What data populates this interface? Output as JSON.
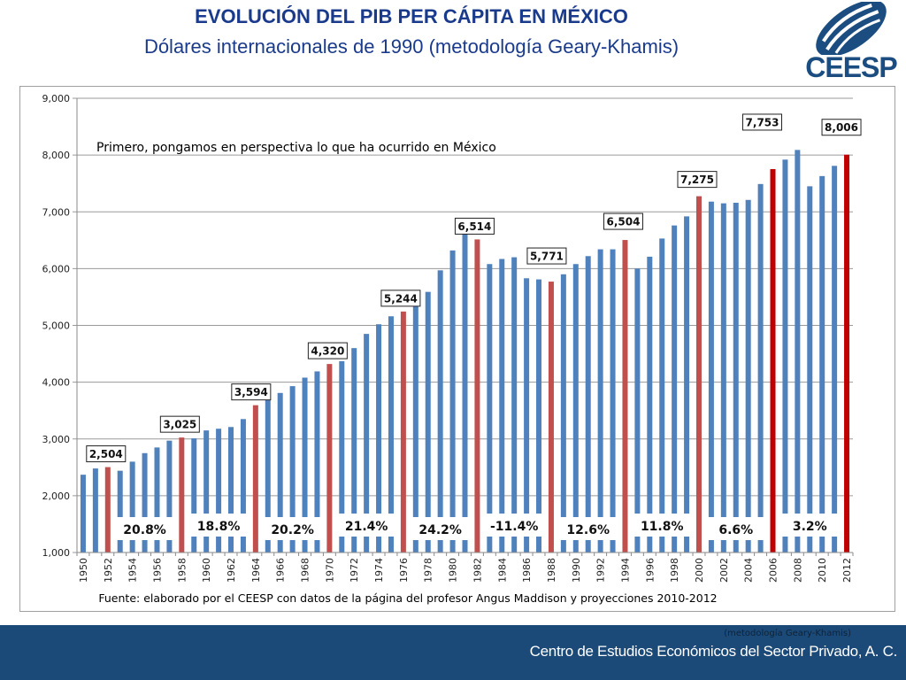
{
  "header": {
    "title": "EVOLUCIÓN DEL PIB PER CÁPITA EN MÉXICO",
    "subtitle": "Dólares  internacionales de 1990 (metodología Geary-Khamis)",
    "logo_text": "CEESP"
  },
  "footer": {
    "note": "(metodología Geary-Khamis)",
    "organization": "Centro de Estudios Económicos del Sector Privado, A. C."
  },
  "colors": {
    "bar_default": "#4f81bd",
    "bar_highlight": "#c0504d",
    "bar_highlight_recent": "#c00000",
    "title": "#1a3a8c",
    "footer_bg": "#1c4a78"
  },
  "chart_data": {
    "type": "bar",
    "annotation": "Primero, pongamos en perspectiva lo que ha ocurrido en México",
    "source_note": "Fuente: elaborado por el CEESP con datos de la página del profesor Angus Maddison y proyecciones 2010-2012",
    "xlabel": "",
    "ylabel": "",
    "ylim": [
      1000,
      9000
    ],
    "yticks": [
      1000,
      2000,
      3000,
      4000,
      5000,
      6000,
      7000,
      8000,
      9000
    ],
    "ytick_labels": [
      "1,000",
      "2,000",
      "3,000",
      "4,000",
      "5,000",
      "6,000",
      "7,000",
      "8,000",
      "9,000"
    ],
    "grid": true,
    "legend": "none",
    "categories": [
      1950,
      1951,
      1952,
      1953,
      1954,
      1955,
      1956,
      1957,
      1958,
      1959,
      1960,
      1961,
      1962,
      1963,
      1964,
      1965,
      1966,
      1967,
      1968,
      1969,
      1970,
      1971,
      1972,
      1973,
      1974,
      1975,
      1976,
      1977,
      1978,
      1979,
      1980,
      1981,
      1982,
      1983,
      1984,
      1985,
      1986,
      1987,
      1988,
      1989,
      1990,
      1991,
      1992,
      1993,
      1994,
      1995,
      1996,
      1997,
      1998,
      1999,
      2000,
      2001,
      2002,
      2003,
      2004,
      2005,
      2006,
      2007,
      2008,
      2009,
      2010,
      2011,
      2012
    ],
    "xtick_labels": [
      "1950",
      "1952",
      "1954",
      "1956",
      "1958",
      "1960",
      "1962",
      "1964",
      "1966",
      "1968",
      "1970",
      "1972",
      "1974",
      "1976",
      "1978",
      "1980",
      "1982",
      "1984",
      "1986",
      "1988",
      "1990",
      "1992",
      "1994",
      "1996",
      "1998",
      "2000",
      "2002",
      "2004",
      "2006",
      "2008",
      "2010",
      "2012"
    ],
    "values": [
      2370,
      2480,
      2504,
      2440,
      2600,
      2750,
      2850,
      2970,
      3025,
      3010,
      3150,
      3180,
      3210,
      3350,
      3594,
      3720,
      3810,
      3930,
      4080,
      4190,
      4320,
      4370,
      4600,
      4850,
      5020,
      5160,
      5244,
      5380,
      5590,
      5970,
      6320,
      6720,
      6514,
      6080,
      6170,
      6200,
      5830,
      5810,
      5771,
      5900,
      6080,
      6220,
      6340,
      6340,
      6504,
      6000,
      6210,
      6530,
      6760,
      6920,
      7275,
      7180,
      7150,
      7160,
      7210,
      7490,
      7753,
      7920,
      8090,
      7450,
      7630,
      7810,
      8006
    ],
    "highlighted_years": {
      "1952": "highlight",
      "1958": "highlight",
      "1964": "highlight",
      "1970": "highlight",
      "1976": "highlight",
      "1982": "highlight",
      "1988": "highlight",
      "1994": "highlight",
      "2000": "highlight",
      "2006": "recent",
      "2012": "recent"
    },
    "value_labels": [
      {
        "year": 1952,
        "text": "2,504"
      },
      {
        "year": 1958,
        "text": "3,025"
      },
      {
        "year": 1964,
        "text": "3,594"
      },
      {
        "year": 1970,
        "text": "4,320"
      },
      {
        "year": 1976,
        "text": "5,244"
      },
      {
        "year": 1982,
        "text": "6,514"
      },
      {
        "year": 1988,
        "text": "5,771"
      },
      {
        "year": 1994,
        "text": "6,504"
      },
      {
        "year": 2000,
        "text": "7,275"
      },
      {
        "year": 2006,
        "text": "7,753"
      },
      {
        "year": 2012,
        "text": "8,006"
      }
    ],
    "period_growth_labels": [
      {
        "from": 1952,
        "to": 1958,
        "text": "20.8%"
      },
      {
        "from": 1958,
        "to": 1964,
        "text": "18.8%"
      },
      {
        "from": 1964,
        "to": 1970,
        "text": "20.2%"
      },
      {
        "from": 1970,
        "to": 1976,
        "text": "21.4%"
      },
      {
        "from": 1976,
        "to": 1982,
        "text": "24.2%"
      },
      {
        "from": 1982,
        "to": 1988,
        "text": "-11.4%"
      },
      {
        "from": 1988,
        "to": 1994,
        "text": "12.6%"
      },
      {
        "from": 1994,
        "to": 2000,
        "text": "11.8%"
      },
      {
        "from": 2000,
        "to": 2006,
        "text": "6.6%"
      },
      {
        "from": 2006,
        "to": 2012,
        "text": "3.2%"
      }
    ]
  }
}
